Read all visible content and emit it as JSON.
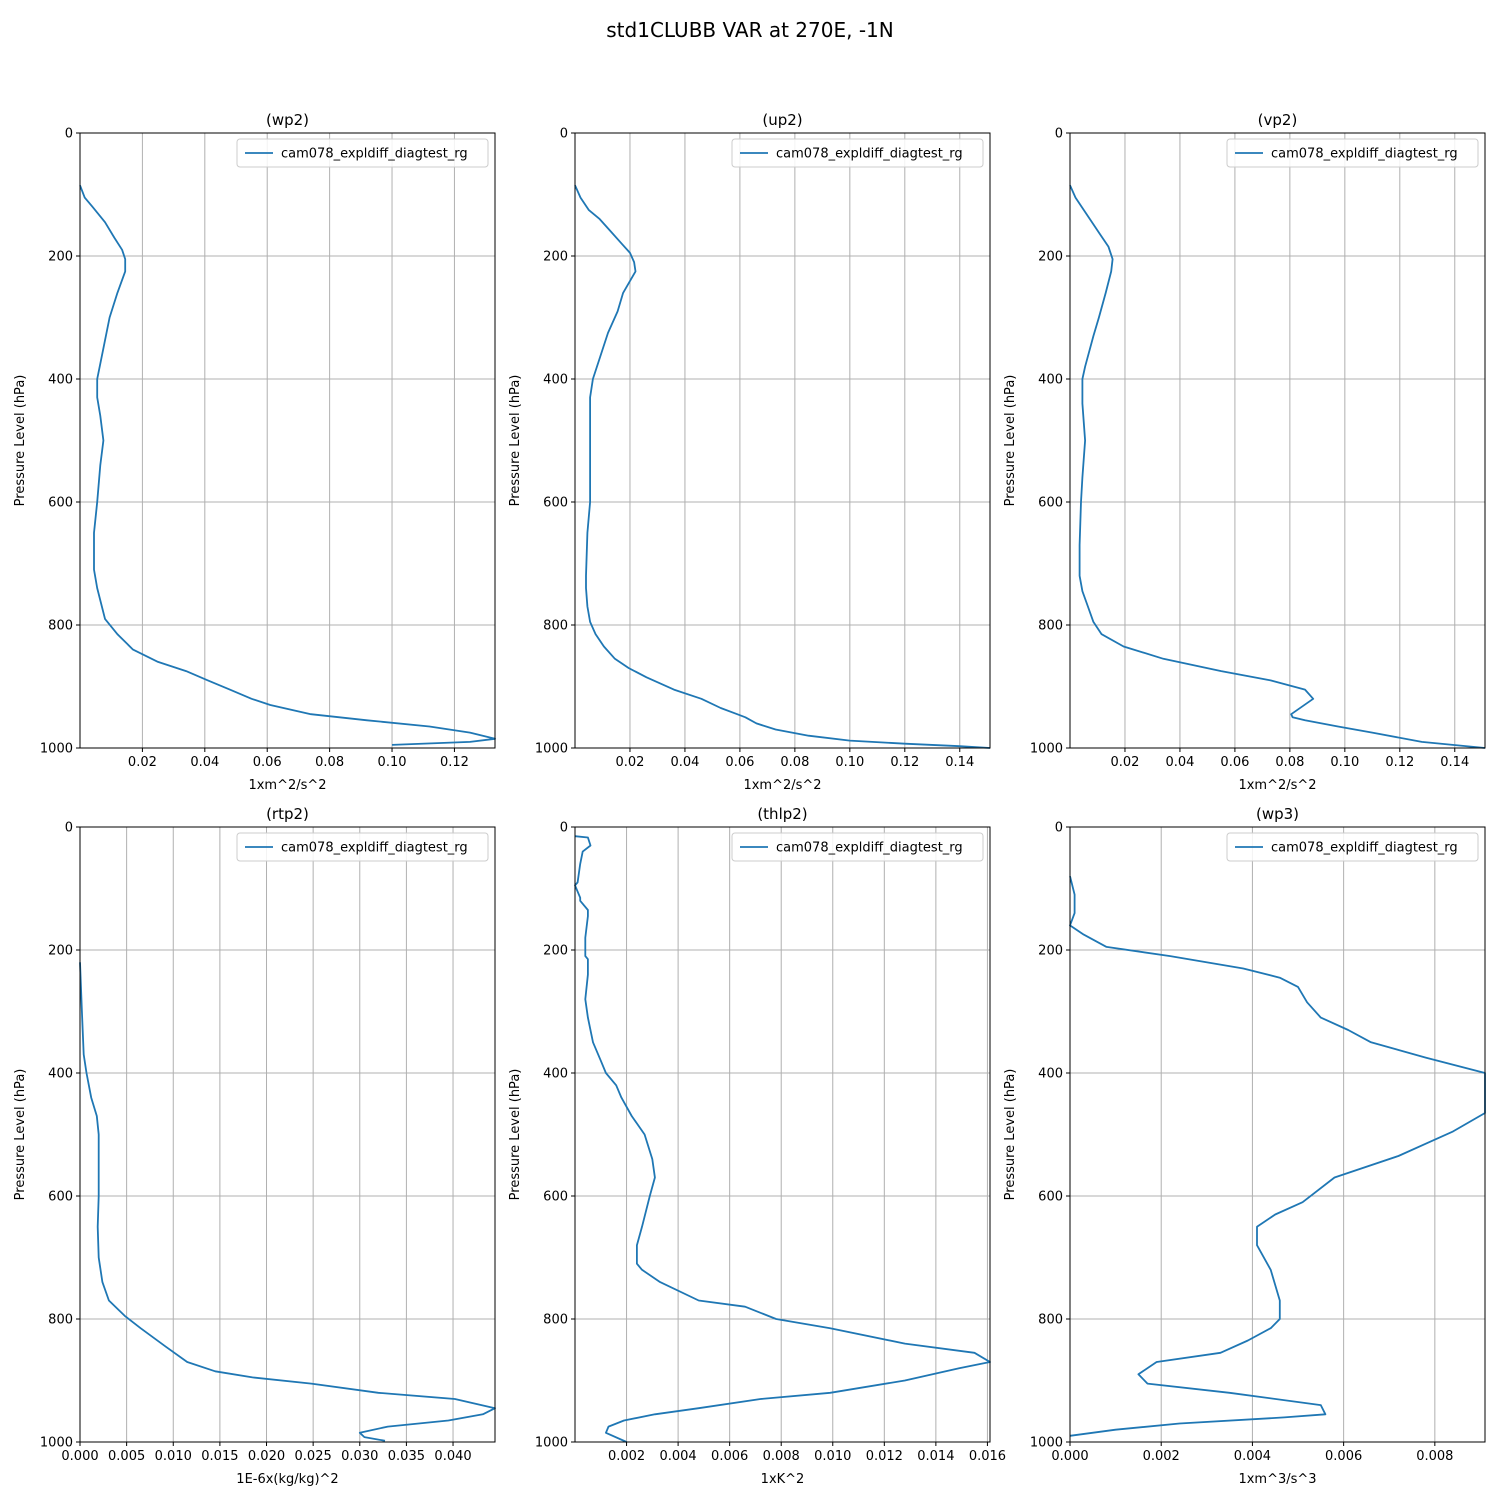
{
  "figure": {
    "title": "std1CLUBB VAR at 270E, -1N"
  },
  "colors": {
    "series": "#1f77b4",
    "grid": "#b0b0b0"
  },
  "chart_data": [
    {
      "type": "line",
      "title": "(wp2)",
      "xlabel": "1xm^2/s^2",
      "ylabel": "Pressure Level (hPa)",
      "xlim": [
        0.0,
        0.133
      ],
      "ylim": [
        1000,
        0
      ],
      "x_ticks": [
        0.02,
        0.04,
        0.06,
        0.08,
        0.1,
        0.12
      ],
      "x_tick_labels": [
        "0.02",
        "0.04",
        "0.06",
        "0.08",
        "0.10",
        "0.12"
      ],
      "y_ticks": [
        0,
        200,
        400,
        600,
        800,
        1000
      ],
      "y_tick_labels": [
        "0",
        "200",
        "400",
        "600",
        "800",
        "1000"
      ],
      "grid": true,
      "legend": "top-right",
      "series": [
        {
          "name": "cam078_expldiff_diagtest_rg",
          "x": [
            0.0,
            0.0015,
            0.004,
            0.008,
            0.011,
            0.0135,
            0.0145,
            0.0145,
            0.012,
            0.0095,
            0.0075,
            0.0055,
            0.0055,
            0.0065,
            0.0075,
            0.0065,
            0.0055,
            0.0045,
            0.0045,
            0.0055,
            0.008,
            0.012,
            0.017,
            0.025,
            0.034,
            0.041,
            0.048,
            0.055,
            0.061,
            0.074,
            0.092,
            0.112,
            0.125,
            0.133,
            0.125,
            0.1
          ],
          "y": [
            85,
            105,
            120,
            145,
            170,
            190,
            205,
            225,
            260,
            300,
            350,
            400,
            430,
            460,
            500,
            540,
            600,
            650,
            710,
            740,
            790,
            815,
            840,
            860,
            875,
            890,
            905,
            920,
            930,
            945,
            955,
            965,
            975,
            985,
            990,
            995
          ]
        }
      ]
    },
    {
      "type": "line",
      "title": "(up2)",
      "xlabel": "1xm^2/s^2",
      "ylabel": "Pressure Level (hPa)",
      "xlim": [
        0.0,
        0.151
      ],
      "ylim": [
        1000,
        0
      ],
      "x_ticks": [
        0.02,
        0.04,
        0.06,
        0.08,
        0.1,
        0.12,
        0.14
      ],
      "x_tick_labels": [
        "0.02",
        "0.04",
        "0.06",
        "0.08",
        "0.10",
        "0.12",
        "0.14"
      ],
      "y_ticks": [
        0,
        200,
        400,
        600,
        800,
        1000
      ],
      "y_tick_labels": [
        "0",
        "200",
        "400",
        "600",
        "800",
        "1000"
      ],
      "grid": true,
      "legend": "top-right",
      "series": [
        {
          "name": "cam078_expldiff_diagtest_rg",
          "x": [
            0.0,
            0.002,
            0.005,
            0.009,
            0.013,
            0.017,
            0.02,
            0.0215,
            0.022,
            0.0175,
            0.0155,
            0.012,
            0.0065,
            0.0055,
            0.0055,
            0.0055,
            0.0045,
            0.004,
            0.004,
            0.0045,
            0.0055,
            0.0075,
            0.0105,
            0.0145,
            0.0195,
            0.026,
            0.036,
            0.046,
            0.053,
            0.059,
            0.062,
            0.066,
            0.073,
            0.085,
            0.1,
            0.12,
            0.14,
            0.151
          ],
          "y": [
            85,
            105,
            125,
            140,
            160,
            180,
            195,
            210,
            225,
            260,
            290,
            325,
            400,
            430,
            500,
            600,
            650,
            720,
            740,
            770,
            795,
            815,
            835,
            855,
            870,
            885,
            905,
            920,
            935,
            945,
            950,
            960,
            970,
            980,
            988,
            993,
            997,
            1000
          ]
        }
      ]
    },
    {
      "type": "line",
      "title": "(vp2)",
      "xlabel": "1xm^2/s^2",
      "ylabel": "Pressure Level (hPa)",
      "xlim": [
        0.0,
        0.151
      ],
      "ylim": [
        1000,
        0
      ],
      "x_ticks": [
        0.02,
        0.04,
        0.06,
        0.08,
        0.1,
        0.12,
        0.14
      ],
      "x_tick_labels": [
        "0.02",
        "0.04",
        "0.06",
        "0.08",
        "0.10",
        "0.12",
        "0.14"
      ],
      "y_ticks": [
        0,
        200,
        400,
        600,
        800,
        1000
      ],
      "y_tick_labels": [
        "0",
        "200",
        "400",
        "600",
        "800",
        "1000"
      ],
      "grid": true,
      "legend": "top-right",
      "series": [
        {
          "name": "cam078_expldiff_diagtest_rg",
          "x": [
            0.0,
            0.002,
            0.005,
            0.008,
            0.011,
            0.014,
            0.0155,
            0.015,
            0.013,
            0.0105,
            0.0085,
            0.0055,
            0.0045,
            0.0045,
            0.0055,
            0.0045,
            0.004,
            0.0035,
            0.0035,
            0.0045,
            0.0065,
            0.0085,
            0.0115,
            0.0195,
            0.034,
            0.055,
            0.073,
            0.0855,
            0.0885,
            0.0805,
            0.081,
            0.0855,
            0.0975,
            0.11,
            0.128,
            0.151
          ],
          "y": [
            85,
            105,
            125,
            145,
            165,
            185,
            205,
            225,
            260,
            300,
            330,
            380,
            400,
            440,
            500,
            560,
            600,
            670,
            720,
            745,
            770,
            795,
            815,
            835,
            855,
            875,
            890,
            905,
            920,
            945,
            950,
            955,
            965,
            975,
            990,
            1000
          ]
        }
      ]
    },
    {
      "type": "line",
      "title": "(rtp2)",
      "xlabel": "1E-6x(kg/kg)^2",
      "ylabel": "Pressure Level (hPa)",
      "xlim": [
        0.0,
        0.0445
      ],
      "ylim": [
        1000,
        0
      ],
      "x_ticks": [
        0.0,
        0.005,
        0.01,
        0.015,
        0.02,
        0.025,
        0.03,
        0.035,
        0.04
      ],
      "x_tick_labels": [
        "0.000",
        "0.005",
        "0.010",
        "0.015",
        "0.020",
        "0.025",
        "0.030",
        "0.035",
        "0.040"
      ],
      "y_ticks": [
        0,
        200,
        400,
        600,
        800,
        1000
      ],
      "y_tick_labels": [
        "0",
        "200",
        "400",
        "600",
        "800",
        "1000"
      ],
      "grid": true,
      "legend": "top-right",
      "series": [
        {
          "name": "cam078_expldiff_diagtest_rg",
          "x": [
            0.0,
            0.0002,
            0.0004,
            0.0007,
            0.0012,
            0.0018,
            0.002,
            0.002,
            0.002,
            0.0019,
            0.002,
            0.0024,
            0.0031,
            0.0048,
            0.0065,
            0.0092,
            0.0115,
            0.0145,
            0.0185,
            0.0248,
            0.032,
            0.0402,
            0.0445,
            0.0432,
            0.0395,
            0.033,
            0.03,
            0.0305,
            0.0327
          ],
          "y": [
            220,
            300,
            370,
            400,
            440,
            470,
            500,
            540,
            600,
            650,
            700,
            740,
            770,
            795,
            815,
            845,
            870,
            885,
            895,
            905,
            920,
            930,
            945,
            955,
            965,
            975,
            985,
            992,
            998
          ]
        }
      ]
    },
    {
      "type": "line",
      "title": "(thlp2)",
      "xlabel": "1xK^2",
      "ylabel": "Pressure Level (hPa)",
      "xlim": [
        0.0,
        0.0161
      ],
      "ylim": [
        1000,
        0
      ],
      "x_ticks": [
        0.002,
        0.004,
        0.006,
        0.008,
        0.01,
        0.012,
        0.014,
        0.016
      ],
      "x_tick_labels": [
        "0.002",
        "0.004",
        "0.006",
        "0.008",
        "0.010",
        "0.012",
        "0.014",
        "0.016"
      ],
      "y_ticks": [
        0,
        200,
        400,
        600,
        800,
        1000
      ],
      "y_tick_labels": [
        "0",
        "200",
        "400",
        "600",
        "800",
        "1000"
      ],
      "grid": true,
      "legend": "top-right",
      "series": [
        {
          "name": "cam078_expldiff_diagtest_rg",
          "x": [
            0.0,
            0.0005,
            0.0006,
            0.0003,
            0.0002,
            0.0001,
            0.0,
            0.0002,
            0.0002,
            0.0005,
            0.0005,
            0.0004,
            0.0004,
            0.0005,
            0.0005,
            0.0004,
            0.0005,
            0.0007,
            0.001,
            0.0012,
            0.0016,
            0.0018,
            0.0022,
            0.0027,
            0.003,
            0.0031,
            0.0029,
            0.0026,
            0.0024,
            0.0024,
            0.0026,
            0.0033,
            0.0048,
            0.0066,
            0.0078,
            0.0099,
            0.0128,
            0.0155,
            0.0161,
            0.0149,
            0.0128,
            0.0099,
            0.0072,
            0.0048,
            0.0031,
            0.0019,
            0.0013,
            0.0012,
            0.002
          ],
          "y": [
            15,
            17,
            30,
            40,
            60,
            90,
            95,
            115,
            120,
            135,
            145,
            180,
            210,
            215,
            240,
            280,
            310,
            350,
            380,
            400,
            420,
            440,
            470,
            500,
            540,
            570,
            600,
            650,
            680,
            710,
            720,
            740,
            770,
            780,
            800,
            815,
            840,
            855,
            870,
            880,
            900,
            920,
            930,
            945,
            955,
            965,
            975,
            985,
            1000
          ]
        }
      ]
    },
    {
      "type": "line",
      "title": "(wp3)",
      "xlabel": "1xm^3/s^3",
      "ylabel": "Pressure Level (hPa)",
      "xlim": [
        0.0,
        0.0091
      ],
      "ylim": [
        1000,
        0
      ],
      "x_ticks": [
        0.0,
        0.002,
        0.004,
        0.006,
        0.008
      ],
      "x_tick_labels": [
        "0.000",
        "0.002",
        "0.004",
        "0.006",
        "0.008"
      ],
      "y_ticks": [
        0,
        200,
        400,
        600,
        800,
        1000
      ],
      "y_tick_labels": [
        "0",
        "200",
        "400",
        "600",
        "800",
        "1000"
      ],
      "grid": true,
      "legend": "top-right",
      "series": [
        {
          "name": "cam078_expldiff_diagtest_rg",
          "x": [
            0.0,
            0.0001,
            0.0001,
            0.0,
            0.0003,
            0.0008,
            0.0022,
            0.0038,
            0.0046,
            0.005,
            0.0052,
            0.0055,
            0.0061,
            0.0066,
            0.0078,
            0.0091,
            0.0091,
            0.0084,
            0.0072,
            0.0058,
            0.0051,
            0.0045,
            0.0041,
            0.0041,
            0.0044,
            0.0046,
            0.0046,
            0.0044,
            0.0039,
            0.0033,
            0.0019,
            0.0015,
            0.0017,
            0.0035,
            0.0055,
            0.0056,
            0.0047,
            0.0024,
            0.001,
            0.0
          ],
          "y": [
            80,
            110,
            140,
            160,
            175,
            195,
            210,
            230,
            245,
            260,
            285,
            310,
            330,
            350,
            375,
            400,
            465,
            495,
            535,
            570,
            610,
            630,
            650,
            680,
            720,
            770,
            800,
            815,
            835,
            855,
            870,
            890,
            905,
            920,
            940,
            955,
            960,
            970,
            980,
            990
          ]
        }
      ]
    }
  ]
}
